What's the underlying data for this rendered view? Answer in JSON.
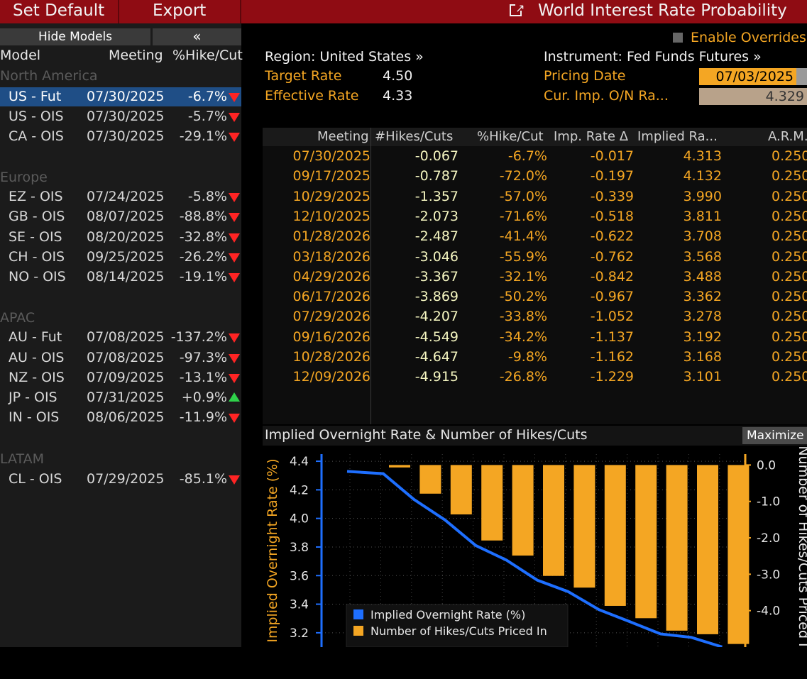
{
  "toolbar": {
    "set_default": "Set Default",
    "export": "Export",
    "title": "World Interest Rate Probability"
  },
  "left": {
    "hide_models": "Hide Models",
    "collapse": "«",
    "headers": {
      "model": "Model",
      "meeting": "Meeting",
      "pct": "%Hike/Cut"
    },
    "regions": [
      {
        "name": "North America",
        "rows": [
          {
            "model": "US - Fut",
            "date": "07/30/2025",
            "value": "-6.7%",
            "dir": "down",
            "selected": true
          },
          {
            "model": "US - OIS",
            "date": "07/30/2025",
            "value": "-5.7%",
            "dir": "down"
          },
          {
            "model": "CA - OIS",
            "date": "07/30/2025",
            "value": "-29.1%",
            "dir": "down"
          }
        ]
      },
      {
        "name": "Europe",
        "rows": [
          {
            "model": "EZ - OIS",
            "date": "07/24/2025",
            "value": "-5.8%",
            "dir": "down"
          },
          {
            "model": "GB - OIS",
            "date": "08/07/2025",
            "value": "-88.8%",
            "dir": "down"
          },
          {
            "model": "SE - OIS",
            "date": "08/20/2025",
            "value": "-32.8%",
            "dir": "down"
          },
          {
            "model": "CH - OIS",
            "date": "09/25/2025",
            "value": "-26.2%",
            "dir": "down"
          },
          {
            "model": "NO - OIS",
            "date": "08/14/2025",
            "value": "-19.1%",
            "dir": "down"
          }
        ]
      },
      {
        "name": "APAC",
        "rows": [
          {
            "model": "AU - Fut",
            "date": "07/08/2025",
            "value": "-137.2%",
            "dir": "down"
          },
          {
            "model": "AU - OIS",
            "date": "07/08/2025",
            "value": "-97.3%",
            "dir": "down"
          },
          {
            "model": "NZ - OIS",
            "date": "07/09/2025",
            "value": "-13.1%",
            "dir": "down"
          },
          {
            "model": "JP - OIS",
            "date": "07/31/2025",
            "value": "+0.9%",
            "dir": "up"
          },
          {
            "model": "IN - OIS",
            "date": "08/06/2025",
            "value": "-11.9%",
            "dir": "down"
          }
        ]
      },
      {
        "name": "LATAM",
        "rows": [
          {
            "model": "CL - OIS",
            "date": "07/29/2025",
            "value": "-85.1%",
            "dir": "down"
          }
        ]
      }
    ]
  },
  "main": {
    "enable_overrides": "Enable Overrides",
    "region": "Region: United States »",
    "instrument": "Instrument: Fed Funds Futures »",
    "target_rate_label": "Target Rate",
    "target_rate": "4.50",
    "effective_rate_label": "Effective Rate",
    "effective_rate": "4.33",
    "pricing_date_label": "Pricing Date",
    "pricing_date": "07/03/2025",
    "cur_imp_label": "Cur. Imp. O/N Ra...",
    "cur_imp_value": "4.329"
  },
  "table": {
    "headers": [
      "Meeting",
      "#Hikes/Cuts",
      "%Hike/Cut",
      "Imp. Rate Δ",
      "Implied Ra...",
      "A.R.M."
    ],
    "rows": [
      [
        "07/30/2025",
        "-0.067",
        "-6.7%",
        "-0.017",
        "4.313",
        "0.250"
      ],
      [
        "09/17/2025",
        "-0.787",
        "-72.0%",
        "-0.197",
        "4.132",
        "0.250"
      ],
      [
        "10/29/2025",
        "-1.357",
        "-57.0%",
        "-0.339",
        "3.990",
        "0.250"
      ],
      [
        "12/10/2025",
        "-2.073",
        "-71.6%",
        "-0.518",
        "3.811",
        "0.250"
      ],
      [
        "01/28/2026",
        "-2.487",
        "-41.4%",
        "-0.622",
        "3.708",
        "0.250"
      ],
      [
        "03/18/2026",
        "-3.046",
        "-55.9%",
        "-0.762",
        "3.568",
        "0.250"
      ],
      [
        "04/29/2026",
        "-3.367",
        "-32.1%",
        "-0.842",
        "3.488",
        "0.250"
      ],
      [
        "06/17/2026",
        "-3.869",
        "-50.2%",
        "-0.967",
        "3.362",
        "0.250"
      ],
      [
        "07/29/2026",
        "-4.207",
        "-33.8%",
        "-1.052",
        "3.278",
        "0.250"
      ],
      [
        "09/16/2026",
        "-4.549",
        "-34.2%",
        "-1.137",
        "3.192",
        "0.250"
      ],
      [
        "10/28/2026",
        "-4.647",
        "-9.8%",
        "-1.162",
        "3.168",
        "0.250"
      ],
      [
        "12/09/2026",
        "-4.915",
        "-26.8%",
        "-1.229",
        "3.101",
        "0.250"
      ]
    ]
  },
  "chart_panel": {
    "title": "Implied Overnight Rate & Number of Hikes/Cuts",
    "maximize": "Maximize"
  },
  "colors": {
    "orange": "#f4a623",
    "blue": "#1e6fff",
    "red_bar": "#8f0c13"
  },
  "chart_data": {
    "type": "bar",
    "title": "Implied Overnight Rate & Number of Hikes/Cuts",
    "ylabel_left": "Implied Overnight Rate (%)",
    "ylabel_right": "Number of Hikes/Cuts Priced In",
    "left_ticks": [
      "4.4",
      "4.2",
      "4.0",
      "3.8",
      "3.6",
      "3.4",
      "3.2"
    ],
    "right_ticks": [
      "0.0",
      "-1.0",
      "-2.0",
      "-3.0",
      "-4.0"
    ],
    "ylim_left": [
      3.1,
      4.45
    ],
    "ylim_right": [
      -5.0,
      0.3
    ],
    "series": [
      {
        "name": "Implied Overnight Rate (%)",
        "values": [
          4.329,
          4.313,
          4.132,
          3.99,
          3.811,
          3.708,
          3.568,
          3.488,
          3.362,
          3.278,
          3.192,
          3.168,
          3.101
        ]
      },
      {
        "name": "Number of Hikes/Cuts Priced In",
        "values": [
          -0.067,
          -0.787,
          -1.357,
          -2.073,
          -2.487,
          -3.046,
          -3.367,
          -3.869,
          -4.207,
          -4.549,
          -4.647,
          -4.915
        ]
      }
    ],
    "legend": "bottom-left"
  }
}
